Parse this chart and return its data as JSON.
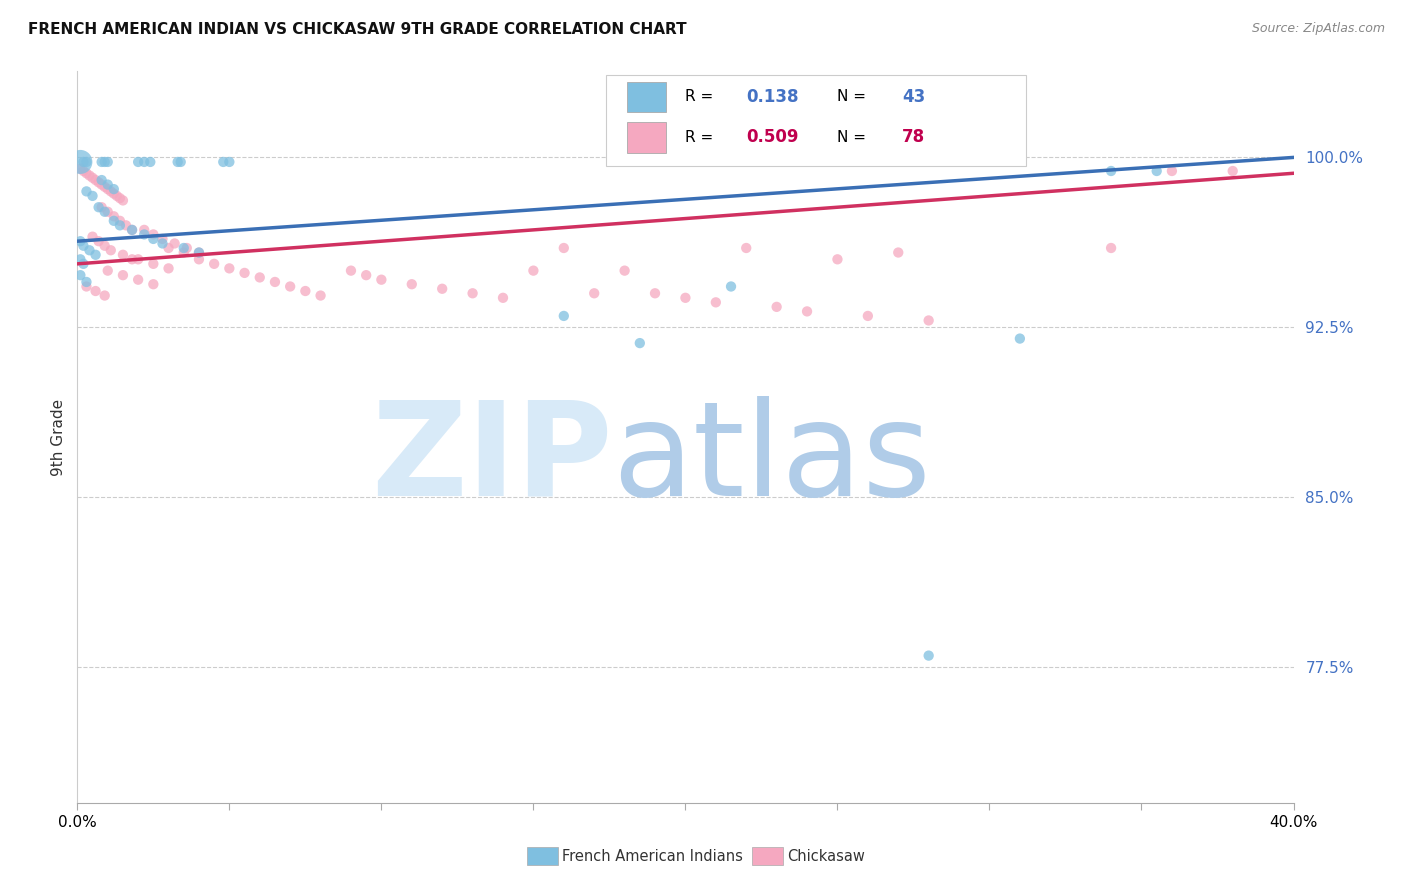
{
  "title": "FRENCH AMERICAN INDIAN VS CHICKASAW 9TH GRADE CORRELATION CHART",
  "source": "Source: ZipAtlas.com",
  "ylabel": "9th Grade",
  "ytick_values": [
    1.0,
    0.925,
    0.85,
    0.775
  ],
  "xlim": [
    0.0,
    0.4
  ],
  "ylim": [
    0.715,
    1.038
  ],
  "legend_blue_r": "0.138",
  "legend_blue_n": "43",
  "legend_pink_r": "0.509",
  "legend_pink_n": "78",
  "blue_color": "#7fbfe0",
  "pink_color": "#f5a8c0",
  "blue_line_color": "#3a6fb5",
  "pink_line_color": "#d03060",
  "blue_line_y0": 0.963,
  "blue_line_y1": 1.0,
  "pink_line_y0": 0.953,
  "pink_line_y1": 0.993,
  "blue_scatter": [
    [
      0.001,
      0.998
    ],
    [
      0.002,
      0.998
    ],
    [
      0.003,
      0.998
    ],
    [
      0.008,
      0.998
    ],
    [
      0.009,
      0.998
    ],
    [
      0.01,
      0.998
    ],
    [
      0.02,
      0.998
    ],
    [
      0.022,
      0.998
    ],
    [
      0.024,
      0.998
    ],
    [
      0.033,
      0.998
    ],
    [
      0.034,
      0.998
    ],
    [
      0.048,
      0.998
    ],
    [
      0.05,
      0.998
    ],
    [
      0.008,
      0.99
    ],
    [
      0.01,
      0.988
    ],
    [
      0.012,
      0.986
    ],
    [
      0.003,
      0.985
    ],
    [
      0.005,
      0.983
    ],
    [
      0.007,
      0.978
    ],
    [
      0.009,
      0.976
    ],
    [
      0.012,
      0.972
    ],
    [
      0.014,
      0.97
    ],
    [
      0.018,
      0.968
    ],
    [
      0.022,
      0.966
    ],
    [
      0.025,
      0.964
    ],
    [
      0.028,
      0.962
    ],
    [
      0.035,
      0.96
    ],
    [
      0.04,
      0.958
    ],
    [
      0.001,
      0.963
    ],
    [
      0.002,
      0.961
    ],
    [
      0.004,
      0.959
    ],
    [
      0.006,
      0.957
    ],
    [
      0.001,
      0.955
    ],
    [
      0.002,
      0.953
    ],
    [
      0.001,
      0.948
    ],
    [
      0.003,
      0.945
    ],
    [
      0.16,
      0.93
    ],
    [
      0.185,
      0.918
    ],
    [
      0.215,
      0.943
    ],
    [
      0.31,
      0.92
    ],
    [
      0.28,
      0.78
    ],
    [
      0.34,
      0.994
    ],
    [
      0.355,
      0.994
    ]
  ],
  "blue_large_idx": [
    0,
    1,
    2,
    3,
    4,
    5
  ],
  "pink_scatter": [
    [
      0.001,
      0.995
    ],
    [
      0.002,
      0.994
    ],
    [
      0.003,
      0.993
    ],
    [
      0.004,
      0.992
    ],
    [
      0.005,
      0.991
    ],
    [
      0.006,
      0.99
    ],
    [
      0.007,
      0.989
    ],
    [
      0.008,
      0.988
    ],
    [
      0.009,
      0.987
    ],
    [
      0.01,
      0.986
    ],
    [
      0.011,
      0.985
    ],
    [
      0.012,
      0.984
    ],
    [
      0.013,
      0.983
    ],
    [
      0.014,
      0.982
    ],
    [
      0.015,
      0.981
    ],
    [
      0.008,
      0.978
    ],
    [
      0.01,
      0.976
    ],
    [
      0.012,
      0.974
    ],
    [
      0.014,
      0.972
    ],
    [
      0.016,
      0.97
    ],
    [
      0.018,
      0.968
    ],
    [
      0.005,
      0.965
    ],
    [
      0.007,
      0.963
    ],
    [
      0.009,
      0.961
    ],
    [
      0.011,
      0.959
    ],
    [
      0.015,
      0.957
    ],
    [
      0.018,
      0.955
    ],
    [
      0.022,
      0.968
    ],
    [
      0.025,
      0.966
    ],
    [
      0.028,
      0.964
    ],
    [
      0.032,
      0.962
    ],
    [
      0.036,
      0.96
    ],
    [
      0.04,
      0.958
    ],
    [
      0.02,
      0.955
    ],
    [
      0.025,
      0.953
    ],
    [
      0.03,
      0.951
    ],
    [
      0.01,
      0.95
    ],
    [
      0.015,
      0.948
    ],
    [
      0.02,
      0.946
    ],
    [
      0.025,
      0.944
    ],
    [
      0.03,
      0.96
    ],
    [
      0.035,
      0.958
    ],
    [
      0.003,
      0.943
    ],
    [
      0.006,
      0.941
    ],
    [
      0.009,
      0.939
    ],
    [
      0.04,
      0.955
    ],
    [
      0.045,
      0.953
    ],
    [
      0.05,
      0.951
    ],
    [
      0.055,
      0.949
    ],
    [
      0.06,
      0.947
    ],
    [
      0.065,
      0.945
    ],
    [
      0.07,
      0.943
    ],
    [
      0.075,
      0.941
    ],
    [
      0.08,
      0.939
    ],
    [
      0.09,
      0.95
    ],
    [
      0.095,
      0.948
    ],
    [
      0.1,
      0.946
    ],
    [
      0.11,
      0.944
    ],
    [
      0.12,
      0.942
    ],
    [
      0.13,
      0.94
    ],
    [
      0.14,
      0.938
    ],
    [
      0.15,
      0.95
    ],
    [
      0.16,
      0.96
    ],
    [
      0.17,
      0.94
    ],
    [
      0.18,
      0.95
    ],
    [
      0.19,
      0.94
    ],
    [
      0.2,
      0.938
    ],
    [
      0.21,
      0.936
    ],
    [
      0.22,
      0.96
    ],
    [
      0.23,
      0.934
    ],
    [
      0.24,
      0.932
    ],
    [
      0.25,
      0.955
    ],
    [
      0.26,
      0.93
    ],
    [
      0.27,
      0.958
    ],
    [
      0.28,
      0.928
    ],
    [
      0.34,
      0.96
    ],
    [
      0.36,
      0.994
    ],
    [
      0.38,
      0.994
    ]
  ],
  "grid_color": "#cccccc",
  "background_color": "#ffffff",
  "tick_color": "#4472c4",
  "legend_text_color": "#000000",
  "legend_blue_val_color": "#4472c4",
  "legend_pink_val_color": "#c0004e"
}
